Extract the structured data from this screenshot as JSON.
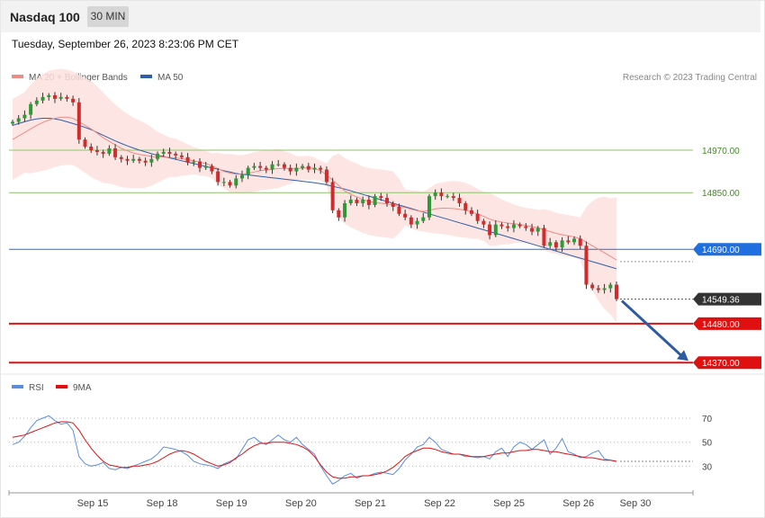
{
  "header": {
    "title": "Nasdaq 100",
    "interval": "30 MIN"
  },
  "timestamp": "Tuesday, September 26, 2023 8:23:06 PM CET",
  "credit": "Research © 2023 Trading Central",
  "legend_price": [
    {
      "label": "MA 20 + Bollinger Bands",
      "color": "#f08a84"
    },
    {
      "label": "MA 50",
      "color": "#2e5fa8"
    }
  ],
  "legend_rsi": [
    {
      "label": "RSI",
      "color": "#5b8de0"
    },
    {
      "label": "9MA",
      "color": "#dd1111"
    }
  ],
  "chart_data": [
    {
      "type": "candlestick",
      "ylim": [
        14340,
        15140
      ],
      "x_ticks": [
        "Sep 15",
        "Sep 18",
        "Sep 19",
        "Sep 20",
        "Sep 21",
        "Sep 22",
        "Sep 25",
        "Sep 26",
        "Sep 30"
      ],
      "last_price": "14549.36",
      "levels": [
        {
          "value": 14970,
          "label": "14970.00",
          "kind": "resistance",
          "color": "#8cc56a"
        },
        {
          "value": 14850,
          "label": "14850.00",
          "kind": "resistance",
          "color": "#8cc56a"
        },
        {
          "value": 14690,
          "label": "14690.00",
          "kind": "pivot",
          "color": "#1f6fe0"
        },
        {
          "value": 14480,
          "label": "14480.00",
          "kind": "support",
          "color": "#e01010"
        },
        {
          "value": 14370,
          "label": "14370.00",
          "kind": "support",
          "color": "#e01010"
        }
      ],
      "closes": [
        15050,
        15060,
        15070,
        15100,
        15110,
        15120,
        15125,
        15115,
        15120,
        15115,
        15105,
        15000,
        14980,
        14970,
        14965,
        14960,
        14975,
        14950,
        14945,
        14940,
        14945,
        14940,
        14935,
        14945,
        14960,
        14965,
        14960,
        14955,
        14950,
        14935,
        14938,
        14920,
        14925,
        14910,
        14880,
        14880,
        14870,
        14890,
        14900,
        14920,
        14925,
        14920,
        14915,
        14930,
        14930,
        14920,
        14910,
        14920,
        14925,
        14915,
        14920,
        14915,
        14880,
        14800,
        14780,
        14820,
        14830,
        14820,
        14830,
        14815,
        14840,
        14835,
        14820,
        14810,
        14790,
        14780,
        14760,
        14770,
        14780,
        14840,
        14850,
        14840,
        14840,
        14835,
        14820,
        14800,
        14790,
        14770,
        14760,
        14730,
        14760,
        14755,
        14750,
        14760,
        14755,
        14750,
        14740,
        14750,
        14700,
        14710,
        14695,
        14715,
        14710,
        14720,
        14700,
        14590,
        14580,
        14575,
        14580,
        14590,
        14549.36
      ],
      "ma20": [
        15000,
        15010,
        15020,
        15030,
        15040,
        15048,
        15055,
        15060,
        15063,
        15063,
        15060,
        15050,
        15040,
        15030,
        15018,
        15005,
        14995,
        14985,
        14975,
        14968,
        14962,
        14958,
        14955,
        14952,
        14950,
        14950,
        14950,
        14948,
        14946,
        14943,
        14940,
        14936,
        14932,
        14926,
        14918,
        14910,
        14905,
        14902,
        14902,
        14904,
        14908,
        14912,
        14914,
        14916,
        14918,
        14918,
        14918,
        14918,
        14919,
        14920,
        14918,
        14912,
        14900,
        14885,
        14870,
        14855,
        14845,
        14838,
        14830,
        14825,
        14822,
        14820,
        14818,
        14815,
        14812,
        14808,
        14803,
        14799,
        14797,
        14800,
        14804,
        14806,
        14806,
        14805,
        14803,
        14800,
        14795,
        14790,
        14783,
        14775,
        14770,
        14767,
        14764,
        14762,
        14760,
        14757,
        14754,
        14751,
        14745,
        14740,
        14735,
        14731,
        14728,
        14725,
        14720,
        14710,
        14700,
        14690,
        14680,
        14670,
        14660
      ],
      "ma50": [
        15040,
        15045,
        15050,
        15055,
        15058,
        15060,
        15060,
        15058,
        15055,
        15050,
        15045,
        15040,
        15034,
        15028,
        15020,
        15012,
        15004,
        14996,
        14989,
        14982,
        14976,
        14970,
        14965,
        14960,
        14955,
        14952,
        14948,
        14944,
        14940,
        14936,
        14932,
        14928,
        14924,
        14920,
        14916,
        14912,
        14908,
        14904,
        14902,
        14900,
        14898,
        14896,
        14894,
        14892,
        14890,
        14888,
        14886,
        14884,
        14882,
        14880,
        14878,
        14875,
        14872,
        14868,
        14864,
        14860,
        14855,
        14850,
        14845,
        14840,
        14835,
        14830,
        14825,
        14820,
        14815,
        14810,
        14805,
        14800,
        14795,
        14790,
        14785,
        14780,
        14775,
        14770,
        14765,
        14760,
        14755,
        14750,
        14745,
        14740,
        14735,
        14730,
        14725,
        14720,
        14715,
        14710,
        14705,
        14700,
        14695,
        14690,
        14685,
        14680,
        14675,
        14670,
        14665,
        14660,
        14655,
        14650,
        14645,
        14640,
        14635
      ]
    },
    {
      "type": "line",
      "ylim": [
        10,
        85
      ],
      "y_ticks": [
        70,
        50,
        30
      ],
      "series": [
        {
          "name": "RSI",
          "color": "#5b8de0",
          "values": [
            48,
            50,
            55,
            62,
            68,
            70,
            72,
            68,
            65,
            66,
            60,
            38,
            32,
            30,
            31,
            33,
            28,
            27,
            29,
            28,
            30,
            32,
            34,
            36,
            40,
            46,
            45,
            44,
            42,
            39,
            34,
            32,
            31,
            30,
            28,
            32,
            34,
            36,
            44,
            52,
            54,
            50,
            48,
            52,
            56,
            52,
            50,
            54,
            48,
            44,
            40,
            30,
            22,
            15,
            18,
            22,
            24,
            20,
            22,
            22,
            24,
            25,
            24,
            23,
            28,
            35,
            40,
            46,
            48,
            54,
            50,
            44,
            42,
            40,
            40,
            38,
            38,
            37,
            38,
            36,
            42,
            45,
            38,
            46,
            50,
            48,
            44,
            48,
            52,
            40,
            45,
            53,
            42,
            40,
            37,
            38,
            41,
            43,
            36,
            35,
            34
          ]
        },
        {
          "name": "9MA",
          "color": "#dd1111",
          "values": [
            54,
            55,
            56,
            58,
            60,
            62,
            64,
            66,
            67,
            67,
            66,
            60,
            52,
            45,
            39,
            34,
            31,
            30,
            29,
            29,
            30,
            30,
            31,
            32,
            34,
            37,
            40,
            42,
            43,
            42,
            40,
            37,
            34,
            32,
            30,
            31,
            33,
            37,
            40,
            44,
            47,
            49,
            49,
            50,
            50,
            50,
            49,
            48,
            46,
            43,
            38,
            31,
            25,
            21,
            20,
            20,
            21,
            21,
            22,
            22,
            23,
            24,
            26,
            29,
            33,
            38,
            41,
            43,
            45,
            45,
            44,
            42,
            41,
            40,
            40,
            39,
            38,
            38,
            38,
            39,
            40,
            41,
            41,
            42,
            43,
            43,
            44,
            44,
            43,
            42,
            42,
            41,
            40,
            39,
            38,
            37,
            37,
            36,
            35,
            35,
            34
          ]
        }
      ]
    }
  ]
}
